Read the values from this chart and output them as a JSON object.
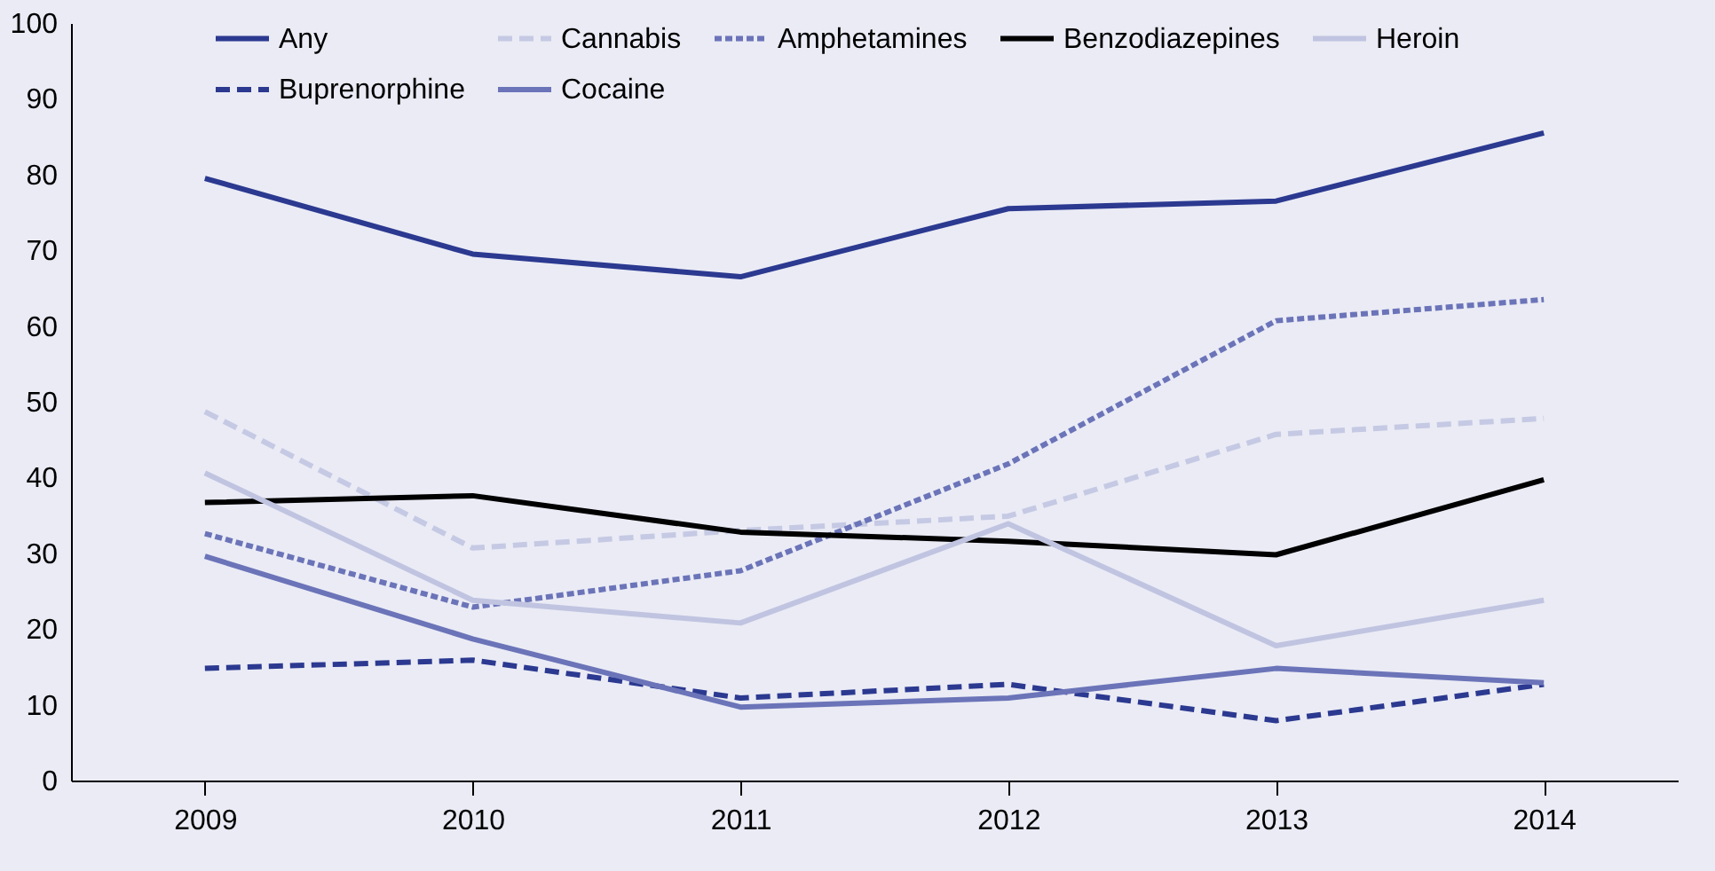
{
  "chart_data": {
    "type": "line",
    "categories": [
      "2009",
      "2010",
      "2011",
      "2012",
      "2013",
      "2014"
    ],
    "series": [
      {
        "name": "Any",
        "color": "#2b3990",
        "line_style": "solid",
        "values": [
          79.5,
          69.5,
          66.5,
          75.5,
          76.5,
          85.5
        ]
      },
      {
        "name": "Cannabis",
        "color": "#c5c9e3",
        "line_style": "dashed",
        "values": [
          48.7,
          30.7,
          33,
          34.9,
          45.7,
          47.8
        ]
      },
      {
        "name": "Amphetamines",
        "color": "#6b74b8",
        "line_style": "dotted",
        "values": [
          32.6,
          22.9,
          27.7,
          41.8,
          60.7,
          63.5
        ]
      },
      {
        "name": "Benzodiazepines",
        "color": "#000000",
        "line_style": "solid",
        "values": [
          36.7,
          37.6,
          32.8,
          31.6,
          29.8,
          39.7
        ]
      },
      {
        "name": "Heroin",
        "color": "#c0c4e0",
        "line_style": "solid",
        "values": [
          40.6,
          23.8,
          20.8,
          33.9,
          17.8,
          23.8
        ]
      },
      {
        "name": "Buprenorphine",
        "color": "#2b3990",
        "line_style": "dashed",
        "values": [
          14.8,
          15.9,
          10.9,
          12.7,
          7.9,
          12.7
        ]
      },
      {
        "name": "Cocaine",
        "color": "#6b74b8",
        "line_style": "solid",
        "values": [
          29.6,
          18.7,
          9.7,
          10.9,
          14.8,
          12.9
        ]
      }
    ],
    "ylim": [
      0,
      100
    ],
    "yticks": [
      0,
      10,
      20,
      30,
      40,
      50,
      60,
      70,
      80,
      90,
      100
    ],
    "grid": false,
    "legend": "top",
    "marker": "none"
  }
}
